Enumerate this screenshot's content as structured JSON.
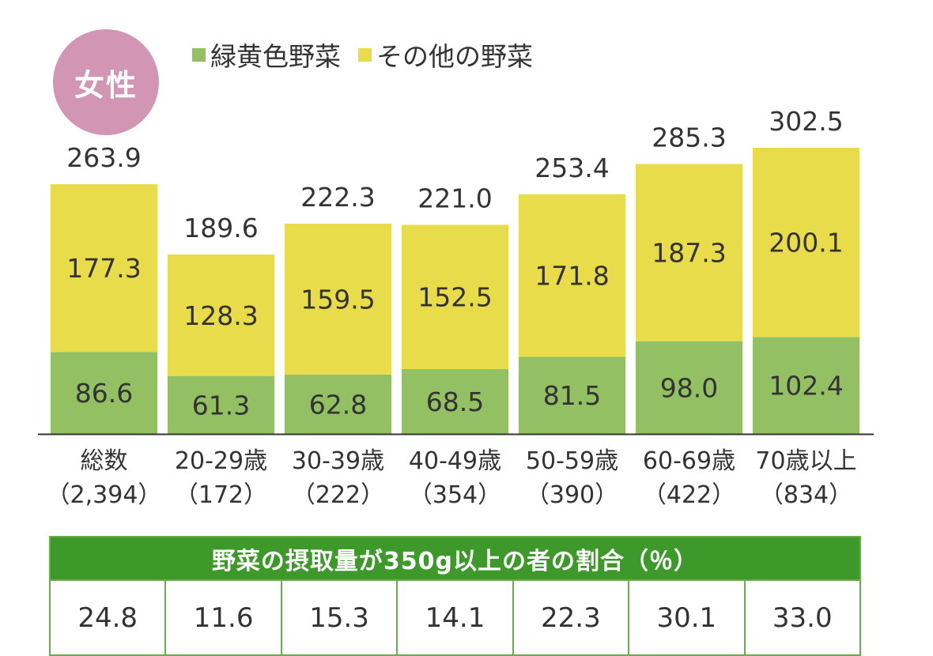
{
  "badge": "女性",
  "legend": [
    {
      "label": "緑黄色野菜",
      "color": "#93c062"
    },
    {
      "label": "その他の野菜",
      "color": "#e8dc4a"
    }
  ],
  "chart_data": {
    "type": "bar",
    "stacked": true,
    "categories": [
      {
        "line1": "総数",
        "line2": "（2,394）"
      },
      {
        "line1": "20-29歳",
        "line2": "（172）"
      },
      {
        "line1": "30-39歳",
        "line2": "（222）"
      },
      {
        "line1": "40-49歳",
        "line2": "（354）"
      },
      {
        "line1": "50-59歳",
        "line2": "（390）"
      },
      {
        "line1": "60-69歳",
        "line2": "（422）"
      },
      {
        "line1": "70歳以上",
        "line2": "（834）"
      }
    ],
    "series": [
      {
        "name": "緑黄色野菜",
        "color": "#93c062",
        "values": [
          86.6,
          61.3,
          62.8,
          68.5,
          81.5,
          98.0,
          102.4
        ],
        "labels": [
          "86.6",
          "61.3",
          "62.8",
          "68.5",
          "81.5",
          "98.0",
          "102.4"
        ]
      },
      {
        "name": "その他の野菜",
        "color": "#e8dc4a",
        "values": [
          177.3,
          128.3,
          159.5,
          152.5,
          171.8,
          187.3,
          200.1
        ],
        "labels": [
          "177.3",
          "128.3",
          "159.5",
          "152.5",
          "171.8",
          "187.3",
          "200.1"
        ]
      }
    ],
    "totals": [
      "263.9",
      "189.6",
      "222.3",
      "221.0",
      "253.4",
      "285.3",
      "302.5"
    ],
    "ylim": [
      0,
      320
    ],
    "grid": false
  },
  "table": {
    "header": "野菜の摂取量が350g以上の者の割合（％）",
    "values": [
      "24.8",
      "11.6",
      "15.3",
      "14.1",
      "22.3",
      "30.1",
      "33.0"
    ]
  }
}
